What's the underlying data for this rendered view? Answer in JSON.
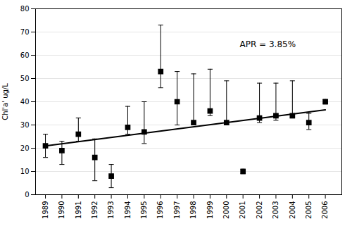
{
  "chart_data": {
    "type": "scatter",
    "ylabel": "Chl'a' ug/L",
    "series": [
      {
        "type": "scatter",
        "marker": "square",
        "color": "#000000",
        "x": [
          1989,
          1990,
          1991,
          1992,
          1993,
          1994,
          1995,
          1996,
          1997,
          1998,
          1999,
          2000,
          2001,
          2002,
          2003,
          2004,
          2005,
          2006
        ],
        "values": [
          21,
          19,
          26,
          16,
          8,
          29,
          27,
          53,
          40,
          31,
          36,
          31,
          10,
          33,
          34,
          34,
          31,
          40
        ],
        "err_upper": [
          5,
          4,
          7,
          8,
          5,
          9,
          13,
          20,
          13,
          21,
          18,
          18,
          1,
          15,
          14,
          15,
          4,
          1
        ],
        "err_lower": [
          5,
          6,
          3,
          10,
          5,
          3,
          5,
          7,
          10,
          1,
          2,
          1,
          1,
          2,
          2,
          1,
          3,
          1
        ]
      },
      {
        "type": "line",
        "color": "#000000",
        "x": [
          1989,
          2006
        ],
        "values": [
          21.0,
          36.5
        ]
      }
    ],
    "annotations": [
      {
        "text": "APR = 3.85%",
        "x": 2000.8,
        "y": 66,
        "color": "#000000"
      }
    ],
    "xlim": [
      1988.4,
      2007.0
    ],
    "xticks": [
      1989,
      1990,
      1991,
      1992,
      1993,
      1994,
      1995,
      1996,
      1997,
      1998,
      1999,
      2000,
      2001,
      2002,
      2003,
      2004,
      2005,
      2006
    ],
    "ylim": [
      0,
      80
    ],
    "yticks": [
      0,
      10,
      20,
      30,
      40,
      50,
      60,
      70,
      80
    ],
    "grid": "y"
  }
}
